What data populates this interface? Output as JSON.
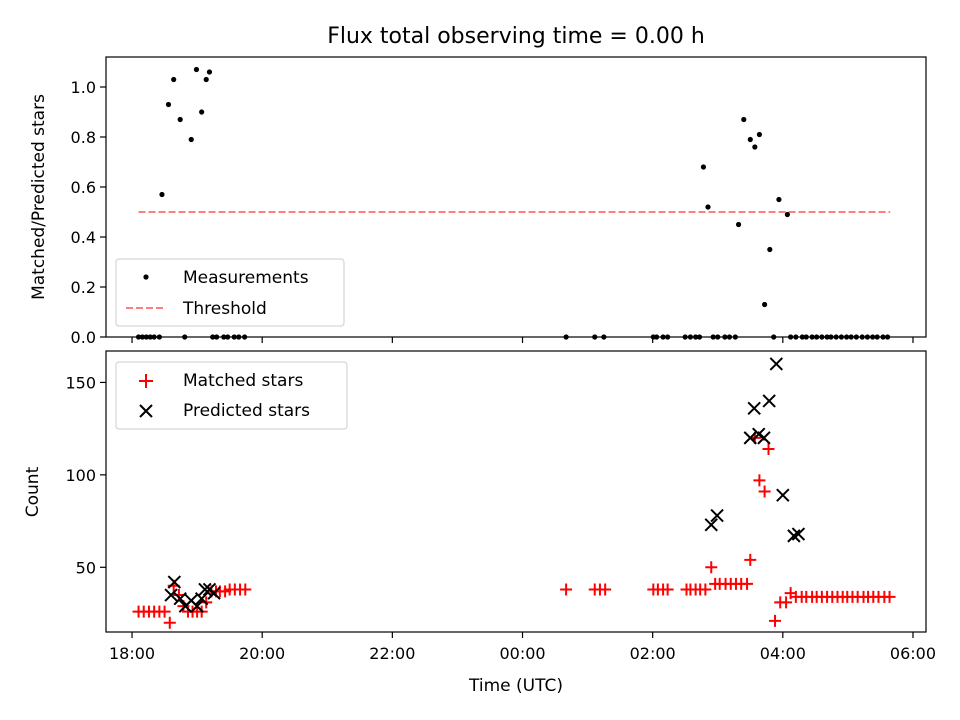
{
  "chart_data": [
    {
      "type": "scatter",
      "title": "Flux total observing time = 0.00 h",
      "ylabel": "Matched/Predicted stars",
      "xlabel": "",
      "xlim": [
        -0.4,
        12.2
      ],
      "ylim": [
        0,
        1.12
      ],
      "yticks": [
        0.0,
        0.2,
        0.4,
        0.6,
        0.8,
        1.0
      ],
      "ytick_labels": [
        "0.0",
        "0.2",
        "0.4",
        "0.6",
        "0.8",
        "1.0"
      ],
      "xticks": [
        0,
        2,
        4,
        6,
        8,
        10,
        12
      ],
      "legend_loc": "lower-left",
      "series": [
        {
          "name": "Measurements",
          "marker": "dot",
          "color": "#000000",
          "x": [
            0.1,
            0.16,
            0.22,
            0.28,
            0.34,
            0.42,
            0.46,
            0.56,
            0.64,
            0.74,
            0.81,
            0.91,
            0.99,
            1.07,
            1.14,
            1.19,
            1.24,
            1.3,
            1.41,
            1.47,
            1.57,
            1.64,
            1.73,
            6.67,
            7.11,
            7.25,
            8.01,
            8.06,
            8.16,
            8.23,
            8.5,
            8.58,
            8.66,
            8.72,
            8.78,
            8.85,
            8.93,
            9.0,
            9.11,
            9.18,
            9.27,
            9.32,
            9.4,
            9.5,
            9.57,
            9.64,
            9.72,
            9.8,
            9.86,
            9.94,
            10.07,
            10.12,
            10.2,
            10.3,
            10.36,
            10.45,
            10.52,
            10.6,
            10.68,
            10.74,
            10.82,
            10.9,
            10.98,
            11.05,
            11.13,
            11.22,
            11.3,
            11.38,
            11.45,
            11.54,
            11.61
          ],
          "y": [
            0,
            0,
            0,
            0,
            0,
            0,
            0.57,
            0.93,
            1.03,
            0.87,
            0,
            0.79,
            1.07,
            0.9,
            1.03,
            1.06,
            0,
            0,
            0,
            0,
            0,
            0,
            0,
            0,
            0,
            0,
            0,
            0,
            0,
            0,
            0,
            0,
            0,
            0,
            0.68,
            0.52,
            0,
            0,
            0,
            0,
            0,
            0.45,
            0.87,
            0.79,
            0.76,
            0.81,
            0.13,
            0.35,
            0,
            0.55,
            0.49,
            0,
            0,
            0,
            0,
            0,
            0,
            0,
            0,
            0,
            0,
            0,
            0,
            0,
            0,
            0,
            0,
            0,
            0,
            0,
            0
          ]
        },
        {
          "name": "Threshold",
          "style": "dashed",
          "color": "#ff7f7f",
          "x": [
            0.1,
            11.65
          ],
          "y": [
            0.5,
            0.5
          ]
        }
      ]
    },
    {
      "type": "scatter",
      "title": "",
      "ylabel": "Count",
      "xlabel": "Time (UTC)",
      "xlim": [
        -0.4,
        12.2
      ],
      "ylim": [
        15,
        167
      ],
      "yticks": [
        50,
        100,
        150
      ],
      "ytick_labels": [
        "50",
        "100",
        "150"
      ],
      "xticks": [
        0,
        2,
        4,
        6,
        8,
        10,
        12
      ],
      "xtick_labels": [
        "18:00",
        "20:00",
        "22:00",
        "00:00",
        "02:00",
        "04:00",
        "06:00"
      ],
      "legend_loc": "upper-left",
      "series": [
        {
          "name": "Matched stars",
          "marker": "plus",
          "color": "#ff0000",
          "x": [
            0.1,
            0.18,
            0.26,
            0.34,
            0.42,
            0.5,
            0.58,
            0.64,
            0.72,
            0.79,
            0.86,
            0.93,
            1.0,
            1.07,
            1.14,
            1.22,
            1.29,
            1.35,
            1.43,
            1.5,
            1.58,
            1.66,
            1.74,
            6.67,
            7.11,
            7.19,
            7.27,
            8.01,
            8.08,
            8.16,
            8.23,
            8.52,
            8.58,
            8.66,
            8.73,
            8.81,
            8.9,
            8.96,
            9.03,
            9.12,
            9.2,
            9.28,
            9.36,
            9.45,
            9.5,
            9.57,
            9.64,
            9.72,
            9.78,
            9.88,
            9.96,
            10.05,
            10.12,
            10.2,
            10.29,
            10.36,
            10.45,
            10.52,
            10.6,
            10.68,
            10.76,
            10.84,
            10.92,
            10.99,
            11.07,
            11.15,
            11.24,
            11.31,
            11.39,
            11.47,
            11.56,
            11.64
          ],
          "y": [
            26,
            26,
            26,
            26,
            26,
            26,
            20,
            40,
            35,
            29,
            26,
            26,
            26,
            26,
            31,
            37,
            37,
            37,
            37,
            38,
            38,
            38,
            38,
            38,
            38,
            38,
            38,
            38,
            38,
            38,
            38,
            38,
            38,
            38,
            38,
            38,
            50,
            41,
            41,
            41,
            41,
            41,
            41,
            41,
            54,
            120,
            97,
            91,
            114,
            21,
            31,
            31,
            36,
            34,
            34,
            34,
            34,
            34,
            34,
            34,
            34,
            34,
            34,
            34,
            34,
            34,
            34,
            34,
            34,
            34,
            34,
            34
          ]
        },
        {
          "name": "Predicted stars",
          "marker": "x",
          "color": "#000000",
          "x": [
            0.6,
            0.65,
            0.74,
            0.82,
            0.91,
            1.0,
            1.07,
            1.12,
            1.19,
            1.26,
            8.9,
            8.99,
            9.5,
            9.56,
            9.63,
            9.71,
            9.79,
            9.9,
            10.0,
            10.17,
            10.24
          ],
          "y": [
            35,
            42,
            33,
            29,
            32,
            29,
            33,
            38,
            38,
            36,
            73,
            78,
            120,
            136,
            122,
            120,
            140,
            160,
            89,
            67,
            68
          ]
        }
      ]
    }
  ]
}
